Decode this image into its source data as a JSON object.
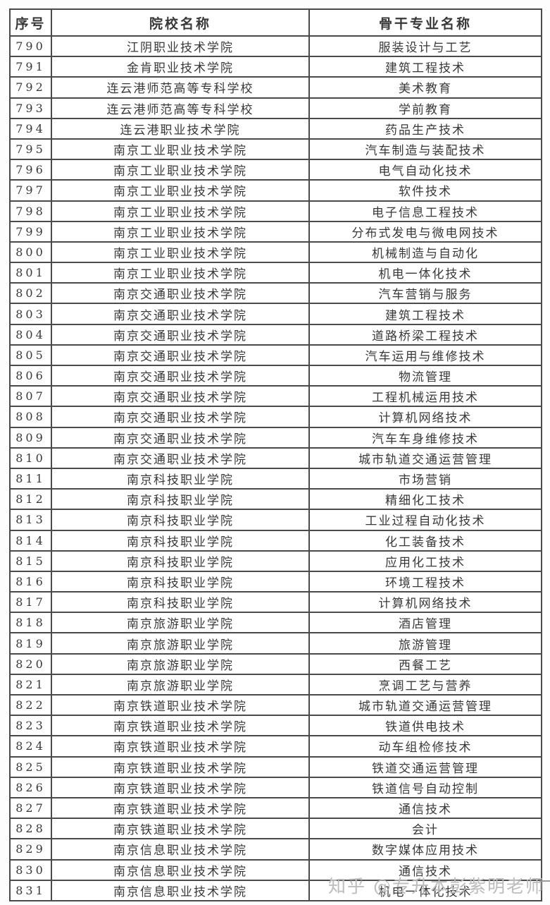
{
  "table": {
    "columns": [
      {
        "label": "序号"
      },
      {
        "label": "院校名称"
      },
      {
        "label": "骨干专业名称"
      }
    ],
    "rows": [
      [
        "790",
        "江阴职业技术学院",
        "服装设计与工艺"
      ],
      [
        "791",
        "金肯职业技术学院",
        "建筑工程技术"
      ],
      [
        "792",
        "连云港师范高等专科学校",
        "美术教育"
      ],
      [
        "793",
        "连云港师范高等专科学校",
        "学前教育"
      ],
      [
        "794",
        "连云港职业技术学院",
        "药品生产技术"
      ],
      [
        "795",
        "南京工业职业技术学院",
        "汽车制造与装配技术"
      ],
      [
        "796",
        "南京工业职业技术学院",
        "电气自动化技术"
      ],
      [
        "797",
        "南京工业职业技术学院",
        "软件技术"
      ],
      [
        "798",
        "南京工业职业技术学院",
        "电子信息工程技术"
      ],
      [
        "799",
        "南京工业职业技术学院",
        "分布式发电与微电网技术"
      ],
      [
        "800",
        "南京工业职业技术学院",
        "机械制造与自动化"
      ],
      [
        "801",
        "南京工业职业技术学院",
        "机电一体化技术"
      ],
      [
        "802",
        "南京交通职业技术学院",
        "汽车营销与服务"
      ],
      [
        "803",
        "南京交通职业技术学院",
        "建筑工程技术"
      ],
      [
        "804",
        "南京交通职业技术学院",
        "道路桥梁工程技术"
      ],
      [
        "805",
        "南京交通职业技术学院",
        "汽车运用与维修技术"
      ],
      [
        "806",
        "南京交通职业技术学院",
        "物流管理"
      ],
      [
        "807",
        "南京交通职业技术学院",
        "工程机械运用技术"
      ],
      [
        "808",
        "南京交通职业技术学院",
        "计算机网络技术"
      ],
      [
        "809",
        "南京交通职业技术学院",
        "汽车车身维修技术"
      ],
      [
        "810",
        "南京交通职业技术学院",
        "城市轨道交通运营管理"
      ],
      [
        "811",
        "南京科技职业学院",
        "市场营销"
      ],
      [
        "812",
        "南京科技职业学院",
        "精细化工技术"
      ],
      [
        "813",
        "南京科技职业学院",
        "工业过程自动化技术"
      ],
      [
        "814",
        "南京科技职业学院",
        "化工装备技术"
      ],
      [
        "815",
        "南京科技职业学院",
        "应用化工技术"
      ],
      [
        "816",
        "南京科技职业学院",
        "环境工程技术"
      ],
      [
        "817",
        "南京科技职业学院",
        "计算机网络技术"
      ],
      [
        "818",
        "南京旅游职业学院",
        "酒店管理"
      ],
      [
        "819",
        "南京旅游职业学院",
        "旅游管理"
      ],
      [
        "820",
        "南京旅游职业学院",
        "西餐工艺"
      ],
      [
        "821",
        "南京旅游职业学院",
        "烹调工艺与营养"
      ],
      [
        "822",
        "南京铁道职业技术学院",
        "城市轨道交通运营管理"
      ],
      [
        "823",
        "南京铁道职业技术学院",
        "铁道供电技术"
      ],
      [
        "824",
        "南京铁道职业技术学院",
        "动车组检修技术"
      ],
      [
        "825",
        "南京铁道职业技术学院",
        "铁道交通运营管理"
      ],
      [
        "826",
        "南京铁道职业技术学院",
        "铁道信号自动控制"
      ],
      [
        "827",
        "南京铁道职业技术学院",
        "通信技术"
      ],
      [
        "828",
        "南京铁道职业技术学院",
        "会计"
      ],
      [
        "829",
        "南京信息职业技术学院",
        "数字媒体应用技术"
      ],
      [
        "830",
        "南京信息职业技术学院",
        "通信技术"
      ],
      [
        "831",
        "南京信息职业技术学院",
        "机电一体化技术"
      ]
    ]
  },
  "watermark": {
    "text": "知乎 @专升本彭紫明老师"
  },
  "colors": {
    "border": "#4b4b4b",
    "text": "#383838",
    "watermark": "#bcbcbc",
    "background": "#ffffff"
  }
}
